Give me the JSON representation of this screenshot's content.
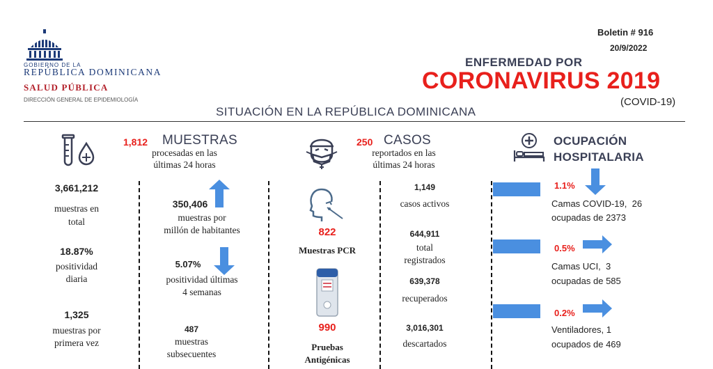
{
  "colors": {
    "accent": "#e8201c",
    "arrow": "#4a8fe0",
    "dark": "#3a3f55"
  },
  "logo": {
    "line1": "GOBIERNO DE LA",
    "line2": "REPÚBLICA DOMINICANA",
    "line3": "SALUD PÚBLICA",
    "line4": "DIRECCIÓN GENERAL DE EPIDEMIOLOGÍA"
  },
  "header": {
    "boletin": "Boletin # 916",
    "date": "20/9/2022",
    "pre_title": "ENFERMEDAD POR",
    "title": "CORONAVIRUS 2019",
    "covid": "(COVID-19)",
    "subtitle": "SITUACIÓN EN LA REPÚBLICA DOMINICANA"
  },
  "muestras": {
    "count": "1,812",
    "heading": "MUESTRAS",
    "sub1": "procesadas en las",
    "sub2": "últimas 24 horas",
    "total_value": "3,661,212",
    "total_l1": "muestras en",
    "total_l2": "total",
    "pos_value": "18.87%",
    "pos_l1": "positividad",
    "pos_l2": "diaria",
    "first_value": "1,325",
    "first_l1": "muestras por",
    "first_l2": "primera vez",
    "permillion_value": "350,406",
    "permillion_l1": "muestras por",
    "permillion_l2": "millón de habitantes",
    "pos4_value": "5.07%",
    "pos4_l1": "positividad últimas",
    "pos4_l2": "4 semanas",
    "subseq_value": "487",
    "subseq_l1": "muestras",
    "subseq_l2": "subsecuentes"
  },
  "pruebas": {
    "pcr_value": "822",
    "pcr_label": "Muestras PCR",
    "ag_value": "990",
    "ag_l1": "Pruebas",
    "ag_l2": "Antigénicas"
  },
  "casos": {
    "count": "250",
    "heading": "CASOS",
    "sub1": "reportados en las",
    "sub2": "últimas 24 horas",
    "active_value": "1,149",
    "active_label": "casos activos",
    "total_value": "644,911",
    "total_l1": "total",
    "total_l2": "registrados",
    "recovered_value": "639,378",
    "recovered_label": "recuperados",
    "discarded_value": "3,016,301",
    "discarded_label": "descartados"
  },
  "ocupacion": {
    "heading1": "OCUPACIÓN",
    "heading2": "HOSPITALARIA",
    "items": [
      {
        "pct": "1.1%",
        "l1": "Camas COVID-19,  26",
        "l2": "ocupadas de 2373",
        "fill": 0.011
      },
      {
        "pct": "0.5%",
        "l1": "Camas UCI,  3",
        "l2": "ocupadas de 585",
        "fill": 0.005
      },
      {
        "pct": "0.2%",
        "l1": "Ventiladores, 1",
        "l2": "ocupados de 469",
        "fill": 0.002
      }
    ]
  },
  "icons": [
    "capitol-logo-icon",
    "test-tube-drop-icon",
    "masked-face-icon",
    "nasal-swab-icon",
    "antigen-test-kit-icon",
    "hospital-bed-icon",
    "arrow-up-icon",
    "arrow-down-icon",
    "arrow-right-icon"
  ]
}
